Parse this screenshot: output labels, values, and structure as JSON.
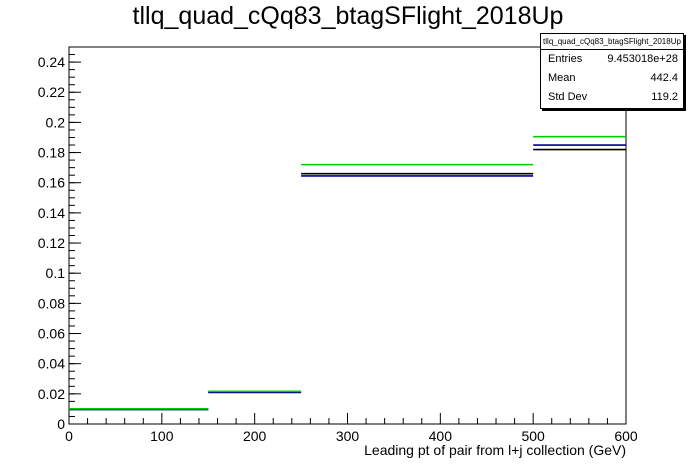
{
  "chart_data": {
    "type": "histogram",
    "title": "tllq_quad_cQq83_btagSFlight_2018Up",
    "xlabel": "Leading pt of pair from l+j collection (GeV)",
    "ylabel": "",
    "xlim": [
      0,
      600
    ],
    "ylim": [
      0,
      0.25
    ],
    "x_ticks": [
      "0",
      "100",
      "200",
      "300",
      "400",
      "500",
      "600"
    ],
    "y_ticks": [
      "0",
      "0.02",
      "0.04",
      "0.06",
      "0.08",
      "0.1",
      "0.12",
      "0.14",
      "0.16",
      "0.18",
      "0.2",
      "0.22",
      "0.24"
    ],
    "bin_edges": [
      0,
      150,
      250,
      500,
      600
    ],
    "series": [
      {
        "color": "#000000",
        "values": [
          0.0098,
          0.0211,
          0.166,
          0.182
        ]
      },
      {
        "color": "#000099",
        "values": [
          0.0096,
          0.0209,
          0.1645,
          0.185
        ]
      },
      {
        "color": "#00cc00",
        "values": [
          0.0101,
          0.0217,
          0.172,
          0.1905
        ]
      }
    ],
    "stats": {
      "name": "tllq_quad_cQq83_btagSFlight_2018Up",
      "rows": [
        {
          "label": "Entries",
          "value": "9.453018e+28"
        },
        {
          "label": "Mean",
          "value": "442.4"
        },
        {
          "label": "Std Dev",
          "value": "119.2"
        }
      ]
    }
  }
}
